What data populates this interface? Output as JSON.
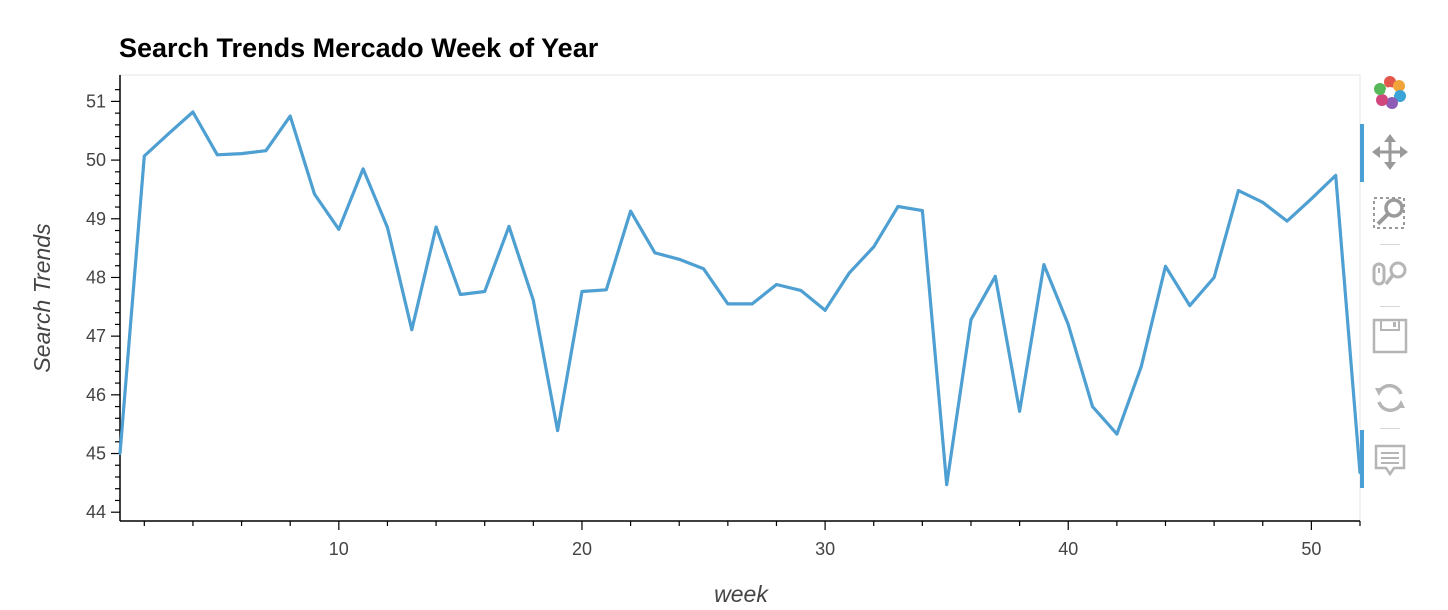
{
  "chart_data": {
    "type": "line",
    "title": "Search Trends Mercado Week of Year",
    "xlabel": "week",
    "ylabel": "Search Trends",
    "xlim": [
      1,
      52
    ],
    "ylim": [
      43.85,
      51.45
    ],
    "xticks": [
      10,
      20,
      30,
      40,
      50
    ],
    "yticks": [
      44,
      45,
      46,
      47,
      48,
      49,
      50,
      51
    ],
    "grid": false,
    "line_color": "#4e9fd2",
    "x": [
      1,
      2,
      3,
      4,
      5,
      6,
      7,
      8,
      9,
      10,
      11,
      12,
      13,
      14,
      15,
      16,
      17,
      18,
      19,
      20,
      21,
      22,
      23,
      24,
      25,
      26,
      27,
      28,
      29,
      30,
      31,
      32,
      33,
      34,
      35,
      36,
      37,
      38,
      39,
      40,
      41,
      42,
      43,
      44,
      45,
      46,
      47,
      48,
      49,
      50,
      51,
      52
    ],
    "values": [
      45.0,
      50.07,
      50.45,
      50.82,
      50.09,
      50.11,
      50.16,
      50.75,
      49.42,
      48.82,
      49.85,
      48.85,
      47.11,
      48.86,
      47.71,
      47.76,
      48.87,
      47.61,
      45.39,
      47.76,
      47.79,
      49.13,
      48.42,
      48.31,
      48.15,
      47.55,
      47.55,
      47.88,
      47.78,
      47.44,
      48.08,
      48.52,
      49.21,
      49.14,
      44.47,
      47.28,
      48.02,
      45.72,
      48.22,
      47.2,
      45.8,
      45.33,
      46.48,
      48.19,
      47.52,
      48.0,
      49.48,
      49.28,
      48.96,
      49.34,
      49.74,
      44.67
    ]
  },
  "toolbar": {
    "tools": [
      "bokeh-logo-icon",
      "pan-icon",
      "box-zoom-icon",
      "wheel-zoom-icon",
      "save-icon",
      "reset-icon",
      "hover-icon"
    ]
  }
}
